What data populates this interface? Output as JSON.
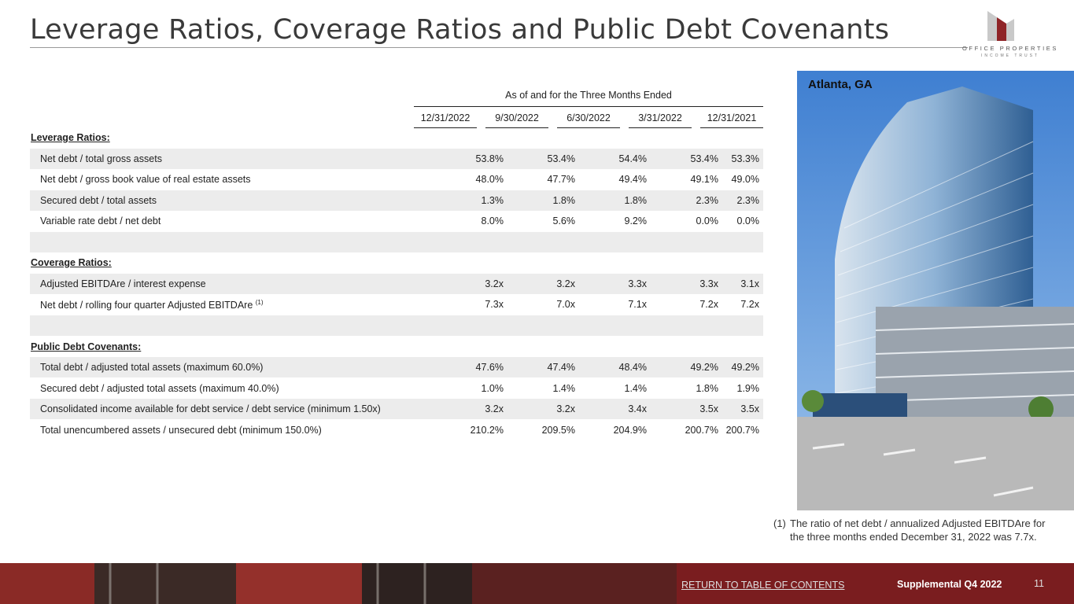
{
  "page": {
    "title": "Leverage Ratios, Coverage Ratios and Public Debt Covenants",
    "logo_line1": "OFFICE PROPERTIES",
    "logo_line2": "INCOME TRUST",
    "photo_label": "Atlanta, GA",
    "footnote_num": "(1)",
    "footnote_text": "The ratio of net debt / annualized Adjusted EBITDAre for the three months ended December 31, 2022 was 7.7x.",
    "return_link": "RETURN TO TABLE OF CONTENTS",
    "supplemental": "Supplemental Q4 2022",
    "page_number": "11"
  },
  "table": {
    "caption": "As of and for the Three Months Ended",
    "columns": [
      "12/31/2022",
      "9/30/2022",
      "6/30/2022",
      "3/31/2022",
      "12/31/2021"
    ],
    "sections": {
      "leverage": "Leverage Ratios:",
      "coverage": "Coverage Ratios:",
      "covenants": "Public Debt Covenants:"
    },
    "rows": [
      {
        "label": "Net debt / total gross assets",
        "values": [
          "53.8%",
          "53.4%",
          "54.4%",
          "53.4%",
          "53.3%"
        ]
      },
      {
        "label": "Net debt / gross book value of real estate assets",
        "values": [
          "48.0%",
          "47.7%",
          "49.4%",
          "49.1%",
          "49.0%"
        ]
      },
      {
        "label": "Secured debt / total assets",
        "values": [
          "1.3%",
          "1.8%",
          "1.8%",
          "2.3%",
          "2.3%"
        ]
      },
      {
        "label": "Variable rate debt / net debt",
        "values": [
          "8.0%",
          "5.6%",
          "9.2%",
          "0.0%",
          "0.0%"
        ]
      },
      {
        "label": "Adjusted EBITDAre / interest expense",
        "values": [
          "3.2x",
          "3.2x",
          "3.3x",
          "3.3x",
          "3.1x"
        ]
      },
      {
        "label": "Net debt / rolling four quarter Adjusted EBITDAre",
        "sup": "(1)",
        "values": [
          "7.3x",
          "7.0x",
          "7.1x",
          "7.2x",
          "7.2x"
        ]
      },
      {
        "label": "Total debt / adjusted total assets (maximum 60.0%)",
        "values": [
          "47.6%",
          "47.4%",
          "48.4%",
          "49.2%",
          "49.2%"
        ]
      },
      {
        "label": "Secured debt / adjusted total assets (maximum 40.0%)",
        "values": [
          "1.0%",
          "1.4%",
          "1.4%",
          "1.8%",
          "1.9%"
        ]
      },
      {
        "label": "Consolidated income available for debt service / debt service (minimum 1.50x)",
        "values": [
          "3.2x",
          "3.2x",
          "3.4x",
          "3.5x",
          "3.5x"
        ]
      },
      {
        "label": "Total unencumbered assets / unsecured debt (minimum 150.0%)",
        "values": [
          "210.2%",
          "209.5%",
          "204.9%",
          "200.7%",
          "200.7%"
        ]
      }
    ]
  }
}
